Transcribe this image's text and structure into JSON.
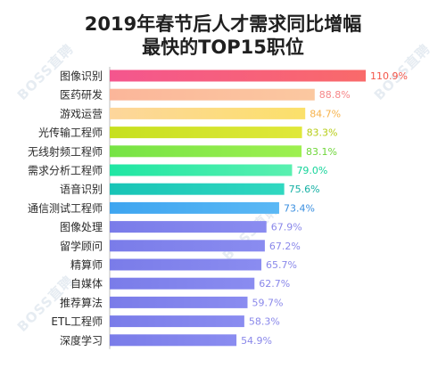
{
  "title_line1": "2019年春节后人才需求同比增幅",
  "title_line2": "最快的TOP15职位",
  "watermark": "BOSS直聘",
  "chart_data": {
    "type": "bar",
    "orientation": "horizontal",
    "categories": [
      "图像识别",
      "医药研发",
      "游戏运营",
      "光传输工程师",
      "无线射频工程师",
      "需求分析工程师",
      "语音识别",
      "通信测试工程师",
      "图像处理",
      "留学顾问",
      "精算师",
      "自媒体",
      "推荐算法",
      "ETL工程师",
      "深度学习"
    ],
    "values": [
      110.9,
      88.8,
      84.7,
      83.3,
      83.1,
      79.0,
      75.6,
      73.4,
      67.9,
      67.2,
      65.7,
      62.7,
      59.7,
      58.3,
      54.9
    ],
    "value_labels": [
      "110.9%",
      "88.8%",
      "84.7%",
      "83.3%",
      "83.1%",
      "79.0%",
      "75.6%",
      "73.4%",
      "67.9%",
      "67.2%",
      "65.7%",
      "62.7%",
      "59.7%",
      "58.3%",
      "54.9%"
    ],
    "colors": [
      "#f4568e",
      "#fbb69a",
      "#fdd69c",
      "#c6e01f",
      "#76e345",
      "#1fe6a3",
      "#18c4b6",
      "#3ea5f0",
      "#7a7ce9",
      "#7a7ce9",
      "#7a7ce9",
      "#7a7ce9",
      "#7a7ce9",
      "#7a7ce9",
      "#7a7ce9"
    ],
    "label_colors": [
      "#f4564a",
      "#f6888a",
      "#f7b24a",
      "#b6cc14",
      "#6fd63a",
      "#16d49a",
      "#14b0a4",
      "#3a8fe0",
      "#8a88ea",
      "#8a88ea",
      "#8a88ea",
      "#8a88ea",
      "#8a88ea",
      "#8a88ea",
      "#8a88ea"
    ],
    "gradient_end_colors": [
      "#f96a6a",
      "#fbc8a0",
      "#fbe06a",
      "#e0e83a",
      "#9ef050",
      "#5af0b0",
      "#30d8c0",
      "#5ab8f5",
      "#8a8cf0",
      "#8a8cf0",
      "#8a8cf0",
      "#8a8cf0",
      "#8a8cf0",
      "#8a8cf0",
      "#8a8cf0"
    ],
    "xlim": [
      0,
      110.9
    ]
  }
}
